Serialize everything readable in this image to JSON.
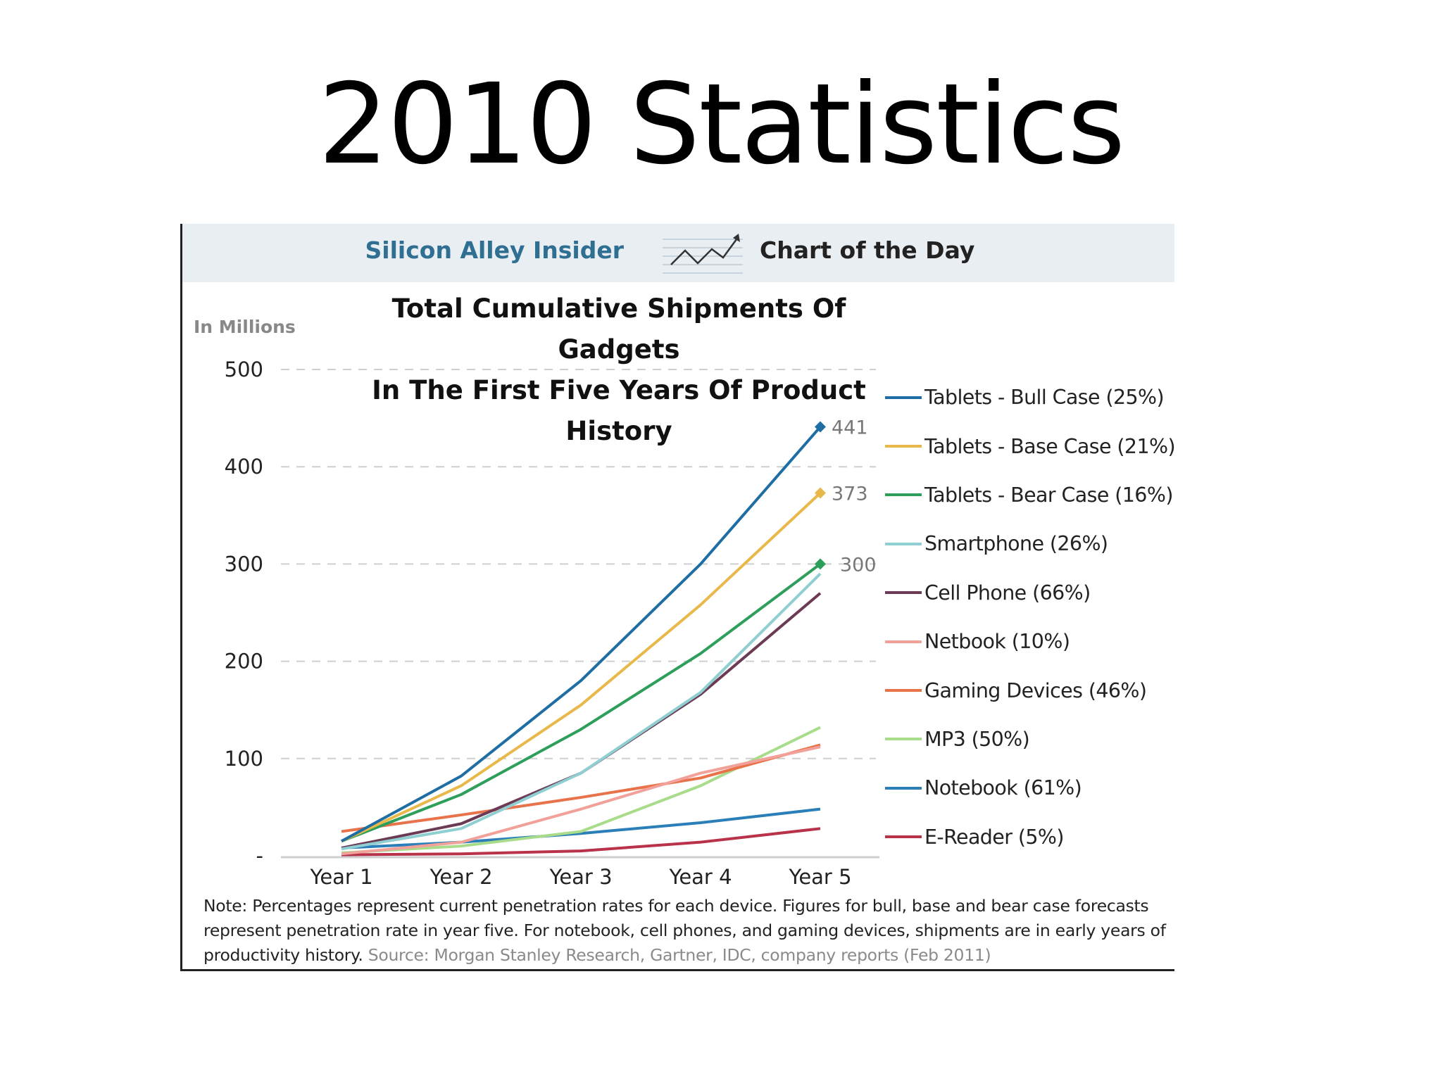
{
  "slide": {
    "title": "2010 Statistics"
  },
  "header": {
    "brand": "Silicon Alley Insider",
    "section": "Chart of the Day",
    "logo_icon": "trend-arrow-icon"
  },
  "chart_data": {
    "type": "line",
    "title_line1": "Total Cumulative Shipments Of Gadgets",
    "title_line2": "In The First Five Years Of Product History",
    "units": "In Millions",
    "x": [
      "Year 1",
      "Year 2",
      "Year 3",
      "Year 4",
      "Year 5"
    ],
    "ylim": [
      0,
      500
    ],
    "yticks": [
      0,
      100,
      200,
      300,
      400,
      500
    ],
    "ytick_labels": [
      "-",
      "100",
      "200",
      "300",
      "400",
      "500"
    ],
    "grid": "horizontal dashed",
    "legend_position": "right",
    "series": [
      {
        "name": "Tablets - Bull Case (25%)",
        "color": "#1f6ea3",
        "values": [
          15,
          82,
          180,
          300,
          441
        ],
        "end_label": "441",
        "marker": "diamond"
      },
      {
        "name": "Tablets - Base Case (21%)",
        "color": "#e8b84a",
        "values": [
          15,
          72,
          155,
          258,
          373
        ],
        "end_label": "373",
        "marker": "diamond"
      },
      {
        "name": "Tablets - Bear Case (16%)",
        "color": "#2e9e5b",
        "values": [
          15,
          63,
          130,
          208,
          300
        ],
        "end_label": "300",
        "marker": "diamond"
      },
      {
        "name": "Smartphone (26%)",
        "color": "#8fcfd1",
        "values": [
          7,
          28,
          85,
          168,
          290
        ]
      },
      {
        "name": "Cell Phone (66%)",
        "color": "#6b3a55",
        "values": [
          8,
          33,
          85,
          166,
          270
        ]
      },
      {
        "name": "Netbook (10%)",
        "color": "#f2a09a",
        "values": [
          2,
          14,
          48,
          85,
          112
        ]
      },
      {
        "name": "Gaming Devices (46%)",
        "color": "#e8734a",
        "values": [
          25,
          42,
          60,
          80,
          114
        ]
      },
      {
        "name": "MP3 (50%)",
        "color": "#a9dc8a",
        "values": [
          3,
          10,
          25,
          72,
          132
        ]
      },
      {
        "name": "Notebook (61%)",
        "color": "#2b7fb8",
        "values": [
          8,
          14,
          23,
          34,
          48
        ]
      },
      {
        "name": "E-Reader (5%)",
        "color": "#b8324a",
        "values": [
          1,
          2,
          5,
          14,
          28
        ]
      }
    ]
  },
  "footnote": {
    "note": "Note: Percentages represent current penetration rates for each device. Figures for bull, base and bear case forecasts represent penetration rate in year five. For notebook, cell phones, and gaming devices, shipments are in early years of productivity history.",
    "source": "Source: Morgan Stanley Research, Gartner, IDC, company reports (Feb 2011)"
  }
}
